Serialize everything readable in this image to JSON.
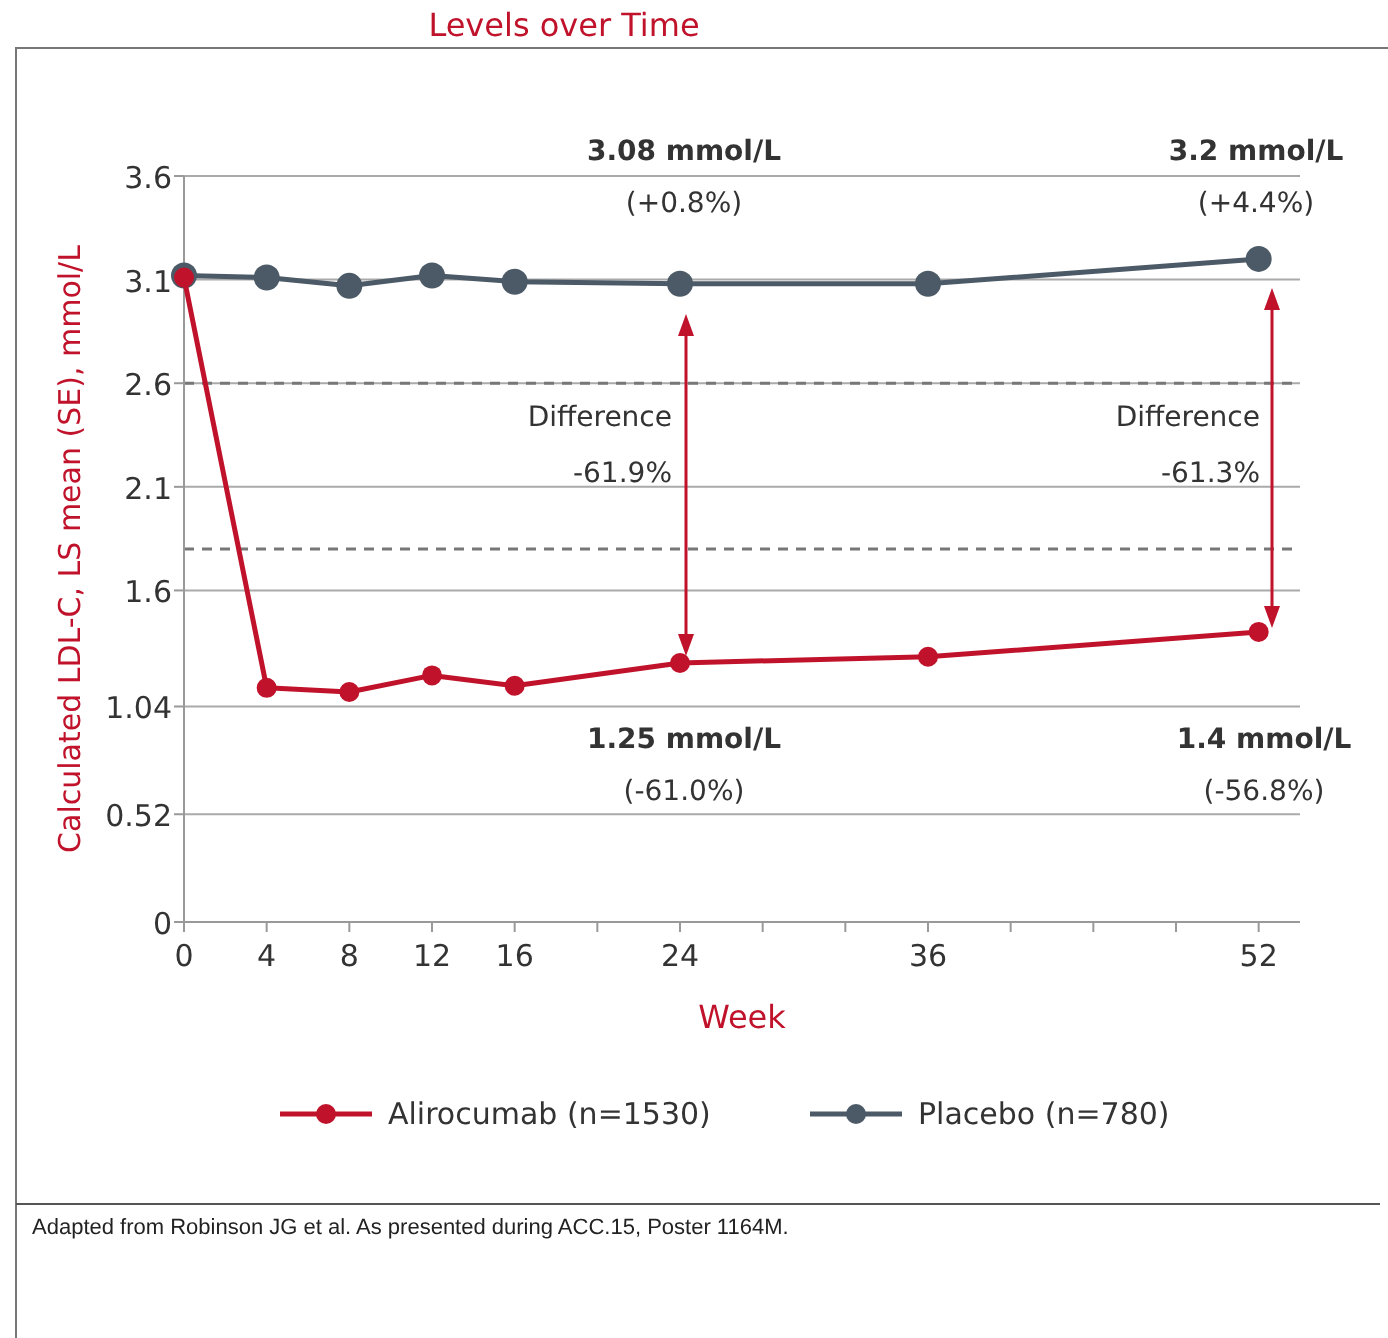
{
  "chart_data": {
    "type": "line",
    "title": "Levels over Time",
    "xlabel": "Week",
    "ylabel": "Calculated LDL-C, LS mean (SE), mmol/L",
    "x": [
      0,
      4,
      8,
      12,
      16,
      24,
      36,
      52
    ],
    "series": [
      {
        "name": "Alirocumab (n=1530)",
        "color": "#c0132b",
        "values": [
          3.11,
          1.13,
          1.11,
          1.19,
          1.14,
          1.25,
          1.28,
          1.4
        ]
      },
      {
        "name": "Placebo (n=780)",
        "color": "#4b5a66",
        "values": [
          3.12,
          3.11,
          3.07,
          3.12,
          3.09,
          3.08,
          3.08,
          3.2
        ]
      }
    ],
    "xlim": [
      0,
      54
    ],
    "xticks": [
      0,
      4,
      8,
      12,
      16,
      {
        "value": 20,
        "label": null
      },
      24,
      {
        "value": 28,
        "label": null
      },
      {
        "value": 32,
        "label": null
      },
      36,
      {
        "value": 40,
        "label": null
      },
      {
        "value": 44,
        "label": null
      },
      {
        "value": 48,
        "label": null
      },
      52
    ],
    "ylim": [
      0,
      3.6
    ],
    "yticks": [
      0,
      0.52,
      1.04,
      1.6,
      2.1,
      2.6,
      3.1,
      3.6
    ],
    "grid": "y",
    "marker": "circle",
    "line_style": "solid",
    "legend": "bottom",
    "ref_lines": [
      {
        "axis": "y",
        "value": 2.6,
        "color": "#777777",
        "line_style": "dashed"
      },
      {
        "axis": "y",
        "value": 1.8,
        "color": "#777777",
        "line_style": "dashed"
      }
    ],
    "annotations": [
      "3.08 mmol/L",
      "(+0.8%)",
      "3.2 mmol/L",
      "(+4.4%)",
      "1.25 mmol/L",
      "(-61.0%)",
      "1.4 mmol/L",
      "(-56.8%)",
      "Difference",
      "-61.9%",
      "Difference",
      "-61.3%",
      "Adapted from Robinson JG et al. As presented during ACC.15, Poster 1164M."
    ]
  }
}
